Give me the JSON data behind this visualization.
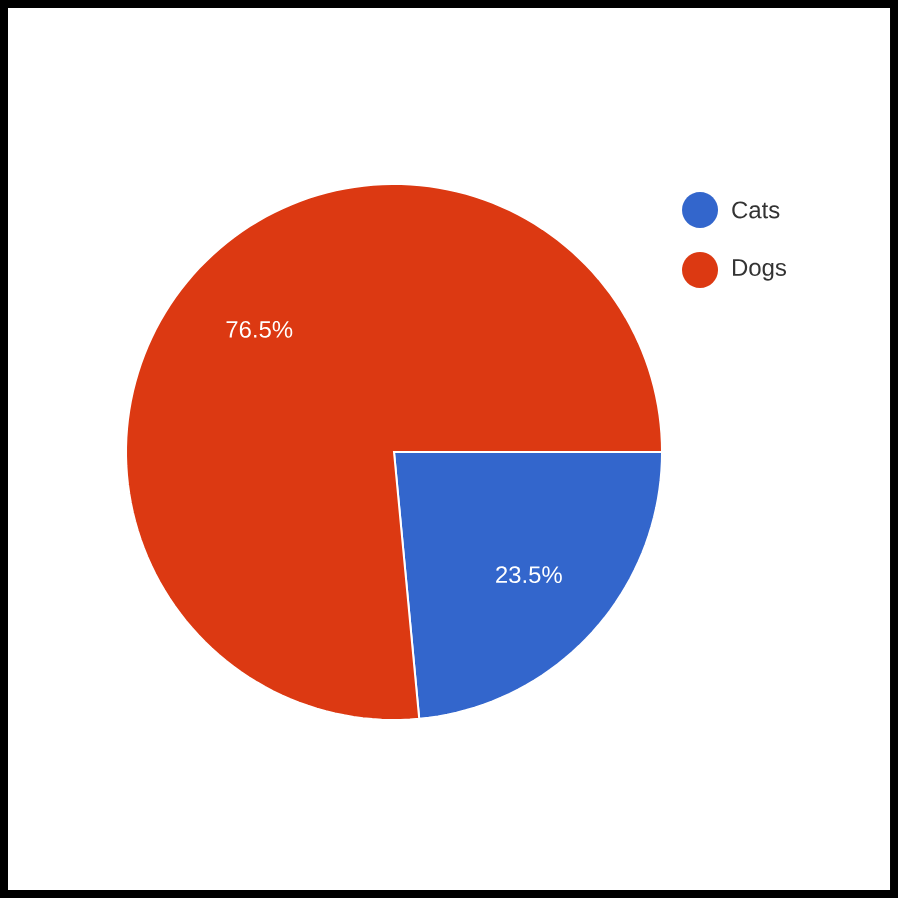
{
  "chart_data": {
    "type": "pie",
    "categories": [
      "Cats",
      "Dogs"
    ],
    "values": [
      23.5,
      76.5
    ],
    "colors": [
      "#3366cc",
      "#dc3912"
    ],
    "value_labels": [
      "23.5%",
      "76.5%"
    ],
    "legend": "top right"
  }
}
